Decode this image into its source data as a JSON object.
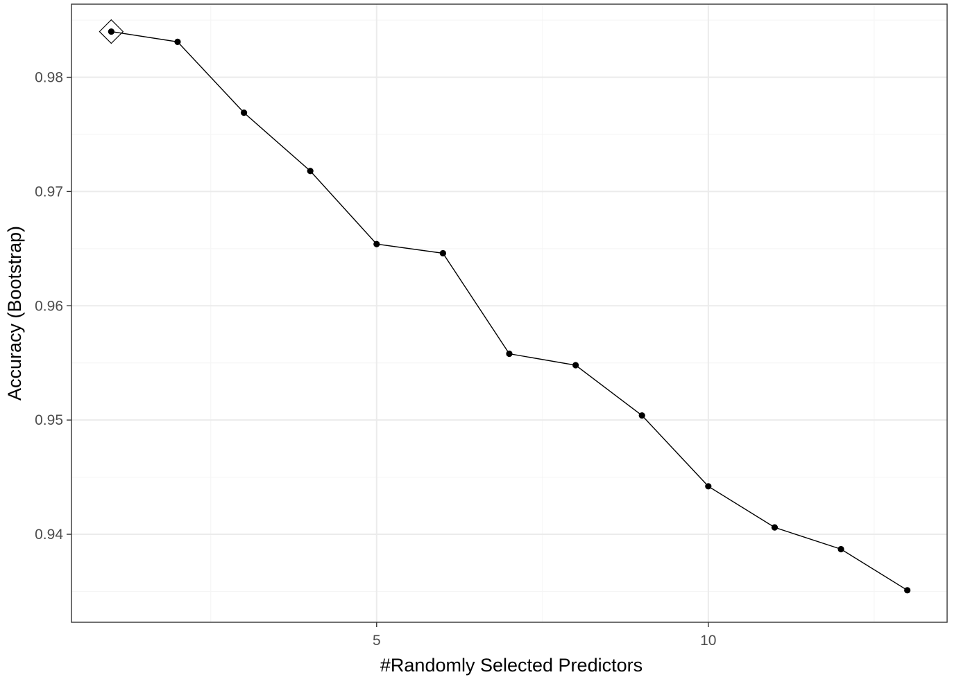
{
  "chart_data": {
    "type": "line",
    "title": "",
    "xlabel": "#Randomly Selected Predictors",
    "ylabel": "Accuracy (Bootstrap)",
    "x": [
      1,
      2,
      3,
      4,
      5,
      6,
      7,
      8,
      9,
      10,
      11,
      12,
      13
    ],
    "series": [
      {
        "values": [
          0.984,
          0.9831,
          0.9769,
          0.9718,
          0.9654,
          0.9646,
          0.9558,
          0.9548,
          0.9504,
          0.9442,
          0.9406,
          0.9387,
          0.9351
        ]
      }
    ],
    "best_point": {
      "x": 1,
      "y": 0.984,
      "marker": "diamond"
    },
    "xlim": [
      0.4,
      13.6
    ],
    "ylim": [
      0.9323,
      0.9864
    ],
    "x_ticks": [
      5,
      10
    ],
    "x_tick_labels": [
      "5",
      "10"
    ],
    "x_minor_ticks": [
      2.5,
      7.5,
      12.5
    ],
    "y_ticks": [
      0.94,
      0.95,
      0.96,
      0.97,
      0.98
    ],
    "y_tick_labels": [
      "0.94",
      "0.95",
      "0.96",
      "0.97",
      "0.98"
    ],
    "y_minor_ticks": [
      0.935,
      0.945,
      0.955,
      0.965,
      0.975,
      0.985
    ],
    "grid": true,
    "colors": {
      "line": "#000000",
      "point": "#000000",
      "grid_major": "#ebebeb",
      "grid_minor": "#f5f5f5",
      "panel_border": "#333333",
      "tick_label": "#4d4d4d"
    }
  }
}
